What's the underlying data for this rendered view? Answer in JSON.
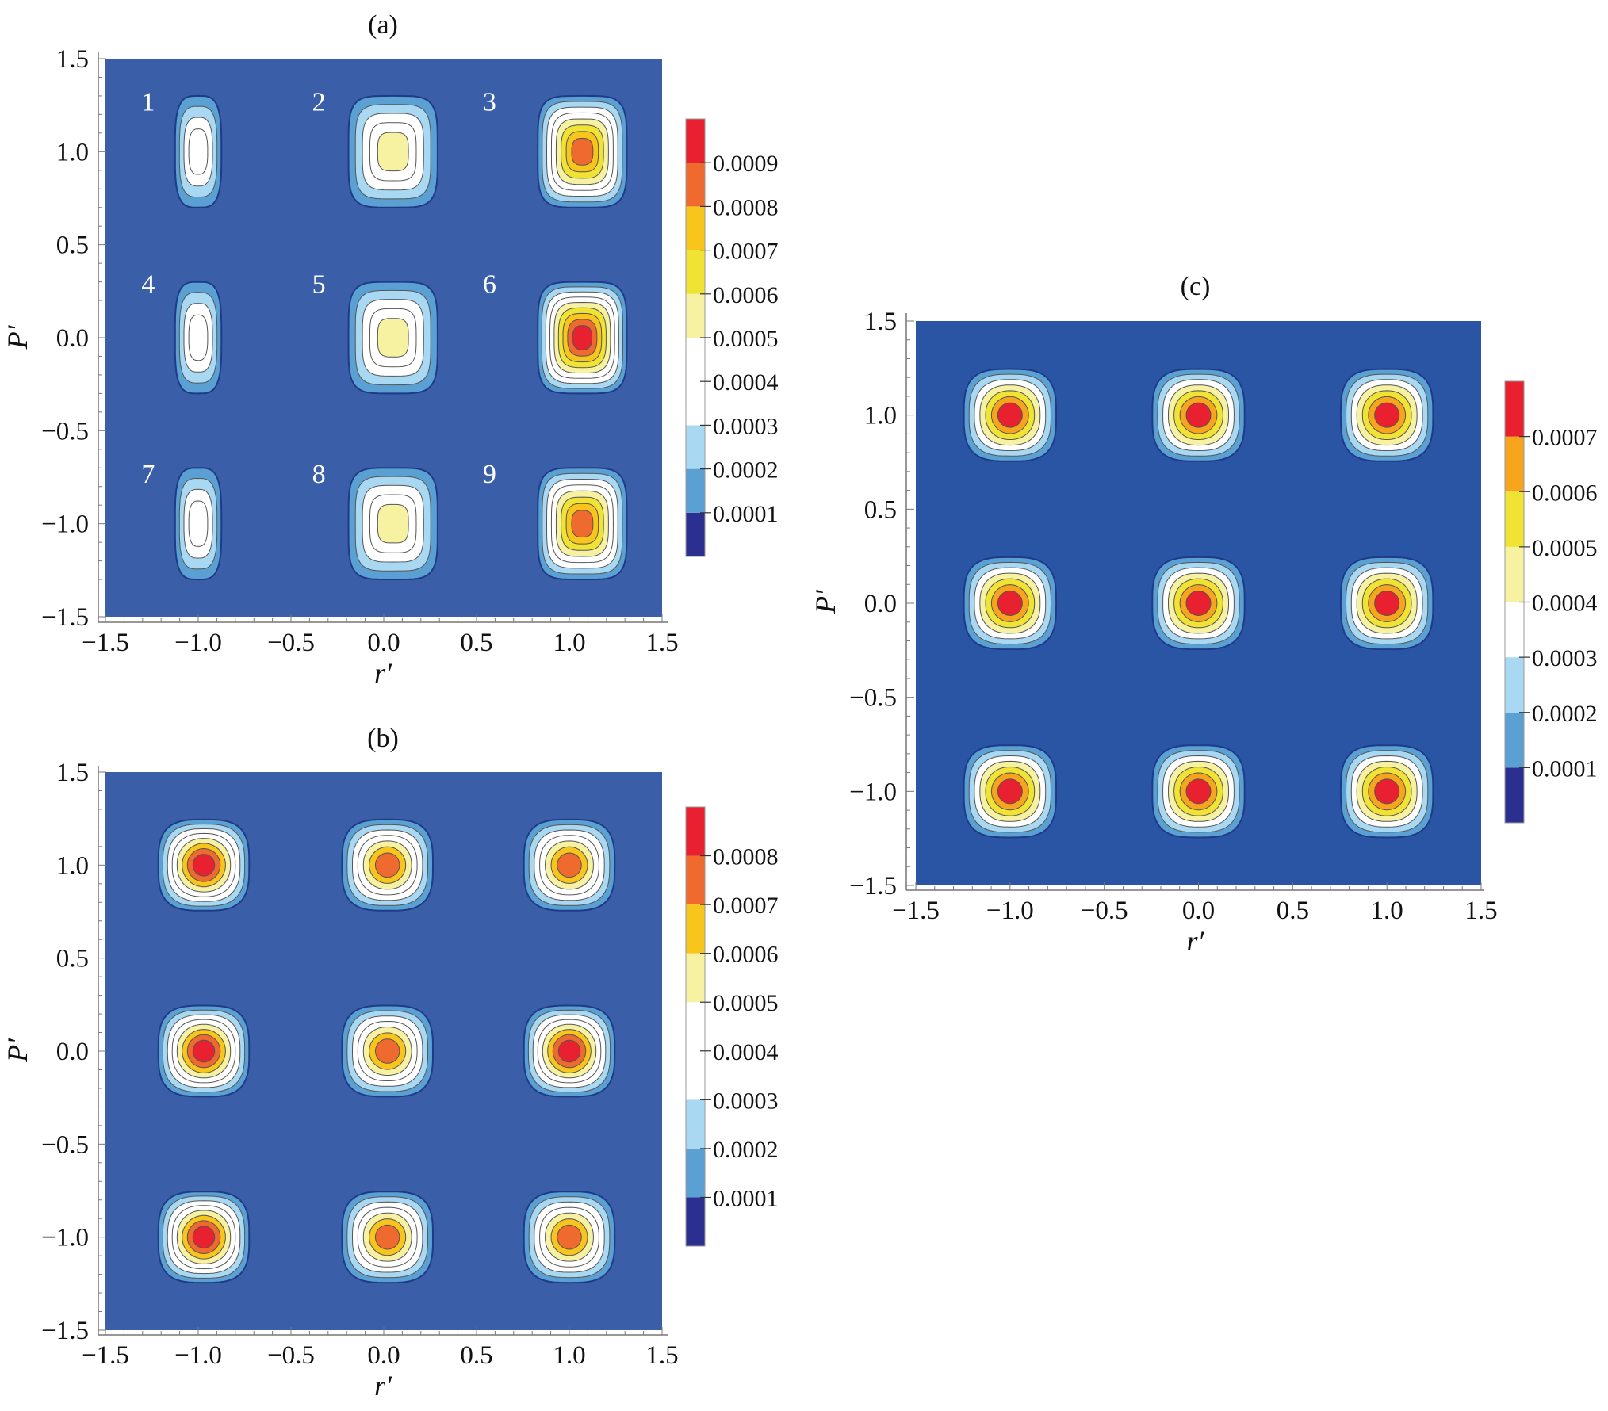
{
  "chart_data": [
    {
      "panel_label": "(a)",
      "type": "heatmap",
      "subtype": "filled-contour",
      "xlabel": "r'",
      "ylabel": "P'",
      "xlim": [
        -1.5,
        1.5
      ],
      "ylim": [
        -1.5,
        1.5
      ],
      "xticks": [
        -1.5,
        -1.0,
        -0.5,
        0.0,
        0.5,
        1.0,
        1.5
      ],
      "yticks": [
        -1.5,
        -1.0,
        -0.5,
        0.0,
        0.5,
        1.0,
        1.5
      ],
      "xtick_labels": [
        "−1.5",
        "−1.0",
        "−0.5",
        "0.0",
        "0.5",
        "1.0",
        "1.5"
      ],
      "ytick_labels": [
        "−1.5",
        "−1.0",
        "−0.5",
        "0.0",
        "0.5",
        "1.0",
        "1.5"
      ],
      "colorbar": {
        "levels": [
          0.0001,
          0.0002,
          0.0003,
          0.0004,
          0.0005,
          0.0006,
          0.0007,
          0.0008,
          0.0009
        ],
        "labels": [
          "0.0001",
          "0.0002",
          "0.0003",
          "0.0004",
          "0.0005",
          "0.0006",
          "0.0007",
          "0.0008",
          "0.0009"
        ],
        "colors": [
          "#2b2f8f",
          "#5aa0d2",
          "#a9d8f2",
          "#ffffff",
          "#ffffff",
          "#f7f2a2",
          "#f1e334",
          "#f7c51c",
          "#ef6a2e",
          "#e8202f"
        ],
        "max": 0.001
      },
      "background_color": "#3a5fa8",
      "peaks": [
        {
          "id": "1",
          "x": -1.0,
          "y": 1.0,
          "peak": 0.00045,
          "shape": "tall"
        },
        {
          "id": "2",
          "x": 0.05,
          "y": 1.0,
          "peak": 0.00055,
          "shape": "square"
        },
        {
          "id": "3",
          "x": 1.07,
          "y": 1.0,
          "peak": 0.00085,
          "shape": "square"
        },
        {
          "id": "4",
          "x": -1.0,
          "y": 0.0,
          "peak": 0.00045,
          "shape": "tall"
        },
        {
          "id": "5",
          "x": 0.05,
          "y": 0.0,
          "peak": 0.00055,
          "shape": "square"
        },
        {
          "id": "6",
          "x": 1.07,
          "y": 0.0,
          "peak": 0.00092,
          "shape": "square"
        },
        {
          "id": "7",
          "x": -1.0,
          "y": -1.0,
          "peak": 0.00045,
          "shape": "tall"
        },
        {
          "id": "8",
          "x": 0.05,
          "y": -1.0,
          "peak": 0.00055,
          "shape": "square"
        },
        {
          "id": "9",
          "x": 1.07,
          "y": -1.0,
          "peak": 0.00085,
          "shape": "square"
        }
      ],
      "peak_labels": [
        {
          "text": "1",
          "x": -1.27,
          "y": 1.22
        },
        {
          "text": "2",
          "x": -0.35,
          "y": 1.22
        },
        {
          "text": "3",
          "x": 0.57,
          "y": 1.22
        },
        {
          "text": "4",
          "x": -1.27,
          "y": 0.24
        },
        {
          "text": "5",
          "x": -0.35,
          "y": 0.24
        },
        {
          "text": "6",
          "x": 0.57,
          "y": 0.24
        },
        {
          "text": "7",
          "x": -1.27,
          "y": -0.78
        },
        {
          "text": "8",
          "x": -0.35,
          "y": -0.78
        },
        {
          "text": "9",
          "x": 0.57,
          "y": -0.78
        }
      ]
    },
    {
      "panel_label": "(b)",
      "type": "heatmap",
      "subtype": "filled-contour",
      "xlabel": "r'",
      "ylabel": "P'",
      "xlim": [
        -1.5,
        1.5
      ],
      "ylim": [
        -1.5,
        1.5
      ],
      "xticks": [
        -1.5,
        -1.0,
        -0.5,
        0.0,
        0.5,
        1.0,
        1.5
      ],
      "yticks": [
        -1.5,
        -1.0,
        -0.5,
        0.0,
        0.5,
        1.0,
        1.5
      ],
      "xtick_labels": [
        "−1.5",
        "−1.0",
        "−0.5",
        "0.0",
        "0.5",
        "1.0",
        "1.5"
      ],
      "ytick_labels": [
        "−1.5",
        "−1.0",
        "−0.5",
        "0.0",
        "0.5",
        "1.0",
        "1.5"
      ],
      "colorbar": {
        "levels": [
          0.0001,
          0.0002,
          0.0003,
          0.0004,
          0.0005,
          0.0006,
          0.0007,
          0.0008
        ],
        "labels": [
          "0.0001",
          "0.0002",
          "0.0003",
          "0.0004",
          "0.0005",
          "0.0006",
          "0.0007",
          "0.0008"
        ],
        "colors": [
          "#2b2f8f",
          "#5aa0d2",
          "#a9d8f2",
          "#ffffff",
          "#ffffff",
          "#f7f2a2",
          "#f7c51c",
          "#ef6a2e",
          "#e8202f"
        ],
        "max": 0.0009
      },
      "background_color": "#3a5fa8",
      "peaks": [
        {
          "x": -0.97,
          "y": 1.0,
          "peak": 0.00082,
          "shape": "round"
        },
        {
          "x": 0.02,
          "y": 1.0,
          "peak": 0.00078,
          "shape": "round"
        },
        {
          "x": 1.0,
          "y": 1.0,
          "peak": 0.00077,
          "shape": "round"
        },
        {
          "x": -0.97,
          "y": 0.0,
          "peak": 0.00082,
          "shape": "round"
        },
        {
          "x": 0.02,
          "y": 0.0,
          "peak": 0.00078,
          "shape": "round"
        },
        {
          "x": 1.0,
          "y": 0.0,
          "peak": 0.00083,
          "shape": "round"
        },
        {
          "x": -0.97,
          "y": -1.0,
          "peak": 0.00082,
          "shape": "round"
        },
        {
          "x": 0.02,
          "y": -1.0,
          "peak": 0.00078,
          "shape": "round"
        },
        {
          "x": 1.0,
          "y": -1.0,
          "peak": 0.00077,
          "shape": "round"
        }
      ]
    },
    {
      "panel_label": "(c)",
      "type": "heatmap",
      "subtype": "filled-contour",
      "xlabel": "r′",
      "ylabel": "P′",
      "xlim": [
        -1.5,
        1.5
      ],
      "ylim": [
        -1.5,
        1.5
      ],
      "xticks": [
        -1.5,
        -1.0,
        -0.5,
        0.0,
        0.5,
        1.0,
        1.5
      ],
      "yticks": [
        -1.5,
        -1.0,
        -0.5,
        0.0,
        0.5,
        1.0,
        1.5
      ],
      "xtick_labels": [
        "−1.5",
        "−1.0",
        "−0.5",
        "0.0",
        "0.5",
        "1.0",
        "1.5"
      ],
      "ytick_labels": [
        "−1.5",
        "−1.0",
        "−0.5",
        "0.0",
        "0.5",
        "1.0",
        "1.5"
      ],
      "colorbar": {
        "levels": [
          0.0001,
          0.0002,
          0.0003,
          0.0004,
          0.0005,
          0.0006,
          0.0007
        ],
        "labels": [
          "0.0001",
          "0.0002",
          "0.0003",
          "0.0004",
          "0.0005",
          "0.0006",
          "0.0007"
        ],
        "colors": [
          "#2b2f8f",
          "#5aa0d2",
          "#a9d8f2",
          "#ffffff",
          "#f7f2a2",
          "#f1e334",
          "#f7a51c",
          "#e8202f"
        ],
        "max": 0.0008
      },
      "background_color": "#2a55a5",
      "peaks": [
        {
          "x": -1.0,
          "y": 1.0,
          "peak": 0.00078,
          "shape": "round"
        },
        {
          "x": 0.0,
          "y": 1.0,
          "peak": 0.00078,
          "shape": "round"
        },
        {
          "x": 1.0,
          "y": 1.0,
          "peak": 0.00078,
          "shape": "round"
        },
        {
          "x": -1.0,
          "y": 0.0,
          "peak": 0.00078,
          "shape": "round"
        },
        {
          "x": 0.0,
          "y": 0.0,
          "peak": 0.00078,
          "shape": "round"
        },
        {
          "x": 1.0,
          "y": 0.0,
          "peak": 0.00078,
          "shape": "round"
        },
        {
          "x": -1.0,
          "y": -1.0,
          "peak": 0.00078,
          "shape": "round"
        },
        {
          "x": 0.0,
          "y": -1.0,
          "peak": 0.00078,
          "shape": "round"
        },
        {
          "x": 1.0,
          "y": -1.0,
          "peak": 0.00078,
          "shape": "round"
        }
      ]
    }
  ]
}
